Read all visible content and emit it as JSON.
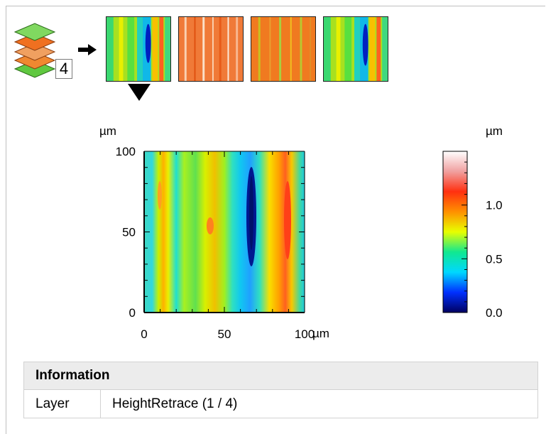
{
  "layers": {
    "count": "4",
    "icon": "layer-stack-icon",
    "arrow_icon": "arrow-right-icon",
    "selector_icon": "triangle-down-icon",
    "thumbnails": [
      {
        "name": "height-retrace",
        "palette": "rainbow",
        "selected": true
      },
      {
        "name": "layer-2",
        "palette": "orange"
      },
      {
        "name": "layer-3",
        "palette": "orange-green"
      },
      {
        "name": "layer-4",
        "palette": "rainbow"
      }
    ]
  },
  "chart_data": {
    "type": "heatmap",
    "x_unit": "µm",
    "y_unit": "µm",
    "x_ticks": [
      "0",
      "50",
      "100"
    ],
    "y_ticks": [
      "0",
      "50",
      "100"
    ],
    "x_tick_values": [
      0,
      50,
      100
    ],
    "y_tick_values": [
      0,
      50,
      100
    ],
    "xlim": [
      0,
      100
    ],
    "ylim": [
      0,
      100
    ],
    "colorbar": {
      "unit": "µm",
      "ticks": [
        "0.0",
        "0.5",
        "1.0"
      ],
      "tick_values": [
        0.0,
        0.5,
        1.0
      ],
      "range": [
        0.0,
        1.5
      ],
      "colors": [
        "#000060",
        "#0030ff",
        "#00d8ff",
        "#10e890",
        "#e8ff00",
        "#ff9000",
        "#ff3010",
        "#f0a0a0",
        "#ffffff"
      ]
    }
  },
  "info": {
    "title": "Information",
    "rows": [
      {
        "key": "Layer",
        "value": "HeightRetrace (1 / 4)"
      }
    ]
  }
}
